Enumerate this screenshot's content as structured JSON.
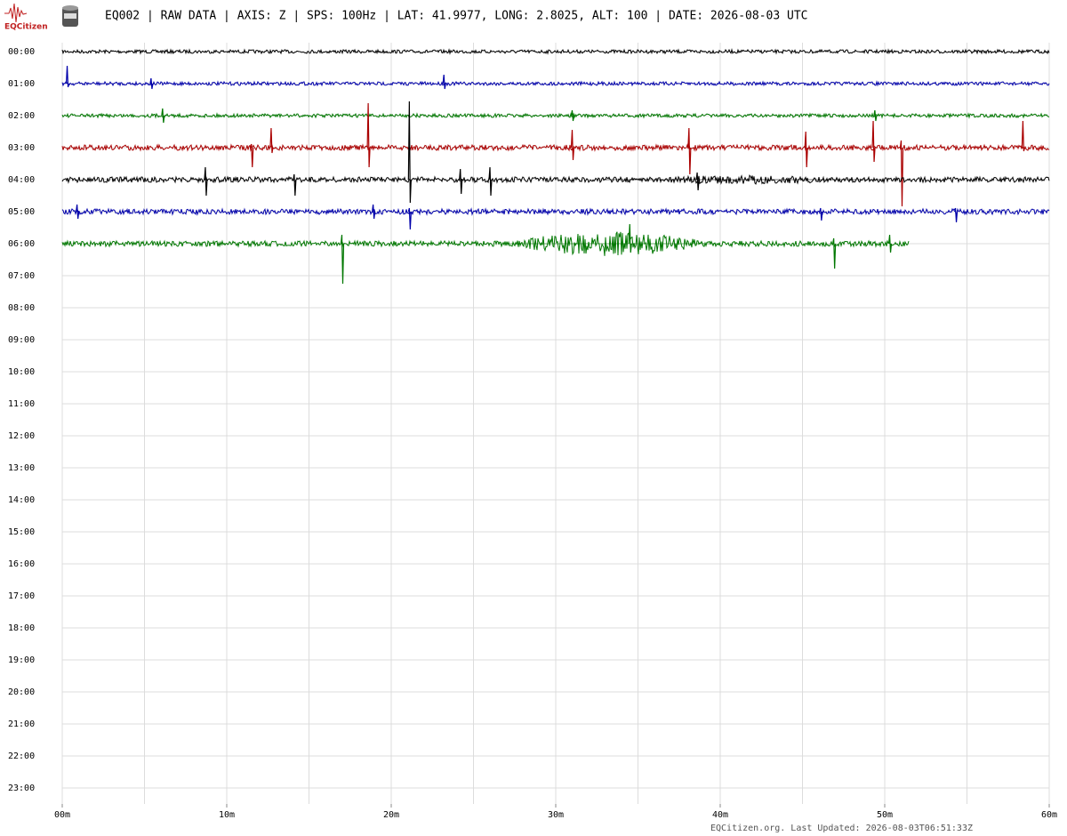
{
  "header": {
    "logo": "EQCitizen",
    "title": "EQ002 | RAW DATA | AXIS: Z | SPS: 100Hz | LAT: 41.9977, LONG: 2.8025, ALT: 100 | DATE: 2026-08-03 UTC"
  },
  "chart_data": {
    "type": "helicorder",
    "rows": [
      "00:00",
      "01:00",
      "02:00",
      "03:00",
      "04:00",
      "05:00",
      "06:00",
      "07:00",
      "08:00",
      "09:00",
      "10:00",
      "11:00",
      "12:00",
      "13:00",
      "14:00",
      "15:00",
      "16:00",
      "17:00",
      "18:00",
      "19:00",
      "20:00",
      "21:00",
      "22:00",
      "23:00"
    ],
    "xlim": [
      0,
      60
    ],
    "xticks": [
      {
        "value": 0,
        "label": "00m"
      },
      {
        "value": 10,
        "label": "10m"
      },
      {
        "value": 20,
        "label": "20m"
      },
      {
        "value": 30,
        "label": "30m"
      },
      {
        "value": 40,
        "label": "40m"
      },
      {
        "value": 50,
        "label": "50m"
      },
      {
        "value": 60,
        "label": "60m"
      }
    ],
    "xgrid": [
      0,
      5,
      10,
      15,
      20,
      25,
      30,
      35,
      40,
      45,
      50,
      55,
      60
    ],
    "grid": true,
    "traces": [
      {
        "row": 0,
        "color": "#000000",
        "end": 60,
        "noise": 2,
        "spikes": [],
        "bursts": []
      },
      {
        "row": 1,
        "color": "#0000aa",
        "end": 60,
        "noise": 2,
        "spikes": [
          [
            0.3,
            20,
            4
          ],
          [
            5.4,
            6,
            6
          ],
          [
            23.2,
            10,
            6
          ]
        ],
        "bursts": []
      },
      {
        "row": 2,
        "color": "#007700",
        "end": 60,
        "noise": 2,
        "spikes": [
          [
            6.1,
            8,
            8
          ],
          [
            31.0,
            6,
            6
          ],
          [
            49.4,
            6,
            6
          ]
        ],
        "bursts": []
      },
      {
        "row": 3,
        "color": "#aa0000",
        "end": 60,
        "noise": 3,
        "spikes": [
          [
            11.5,
            4,
            22
          ],
          [
            12.7,
            22,
            6
          ],
          [
            18.6,
            50,
            22
          ],
          [
            31.0,
            20,
            14
          ],
          [
            38.1,
            22,
            30
          ],
          [
            45.2,
            18,
            22
          ],
          [
            49.3,
            30,
            16
          ],
          [
            51.0,
            8,
            66
          ],
          [
            58.4,
            30,
            4
          ]
        ],
        "bursts": []
      },
      {
        "row": 4,
        "color": "#000000",
        "end": 60,
        "noise": 3,
        "spikes": [
          [
            8.7,
            14,
            18
          ],
          [
            14.1,
            6,
            18
          ],
          [
            21.1,
            88,
            26
          ],
          [
            24.2,
            12,
            16
          ],
          [
            26.0,
            14,
            18
          ],
          [
            38.6,
            8,
            12
          ]
        ],
        "bursts": [
          [
            33,
            50,
            5
          ]
        ]
      },
      {
        "row": 5,
        "color": "#0000aa",
        "end": 60,
        "noise": 3,
        "spikes": [
          [
            0.9,
            8,
            8
          ],
          [
            18.9,
            8,
            8
          ],
          [
            21.1,
            4,
            20
          ],
          [
            46.1,
            4,
            10
          ],
          [
            54.3,
            4,
            12
          ]
        ],
        "bursts": []
      },
      {
        "row": 6,
        "color": "#007700",
        "end": 51.5,
        "noise": 3,
        "spikes": [
          [
            17.0,
            10,
            45
          ],
          [
            34.5,
            22,
            10
          ],
          [
            46.9,
            6,
            28
          ],
          [
            50.3,
            10,
            10
          ]
        ],
        "bursts": [
          [
            26.5,
            40,
            14
          ]
        ]
      }
    ]
  },
  "footer": "EQCitizen.org. Last Updated: 2026-08-03T06:51:33Z"
}
